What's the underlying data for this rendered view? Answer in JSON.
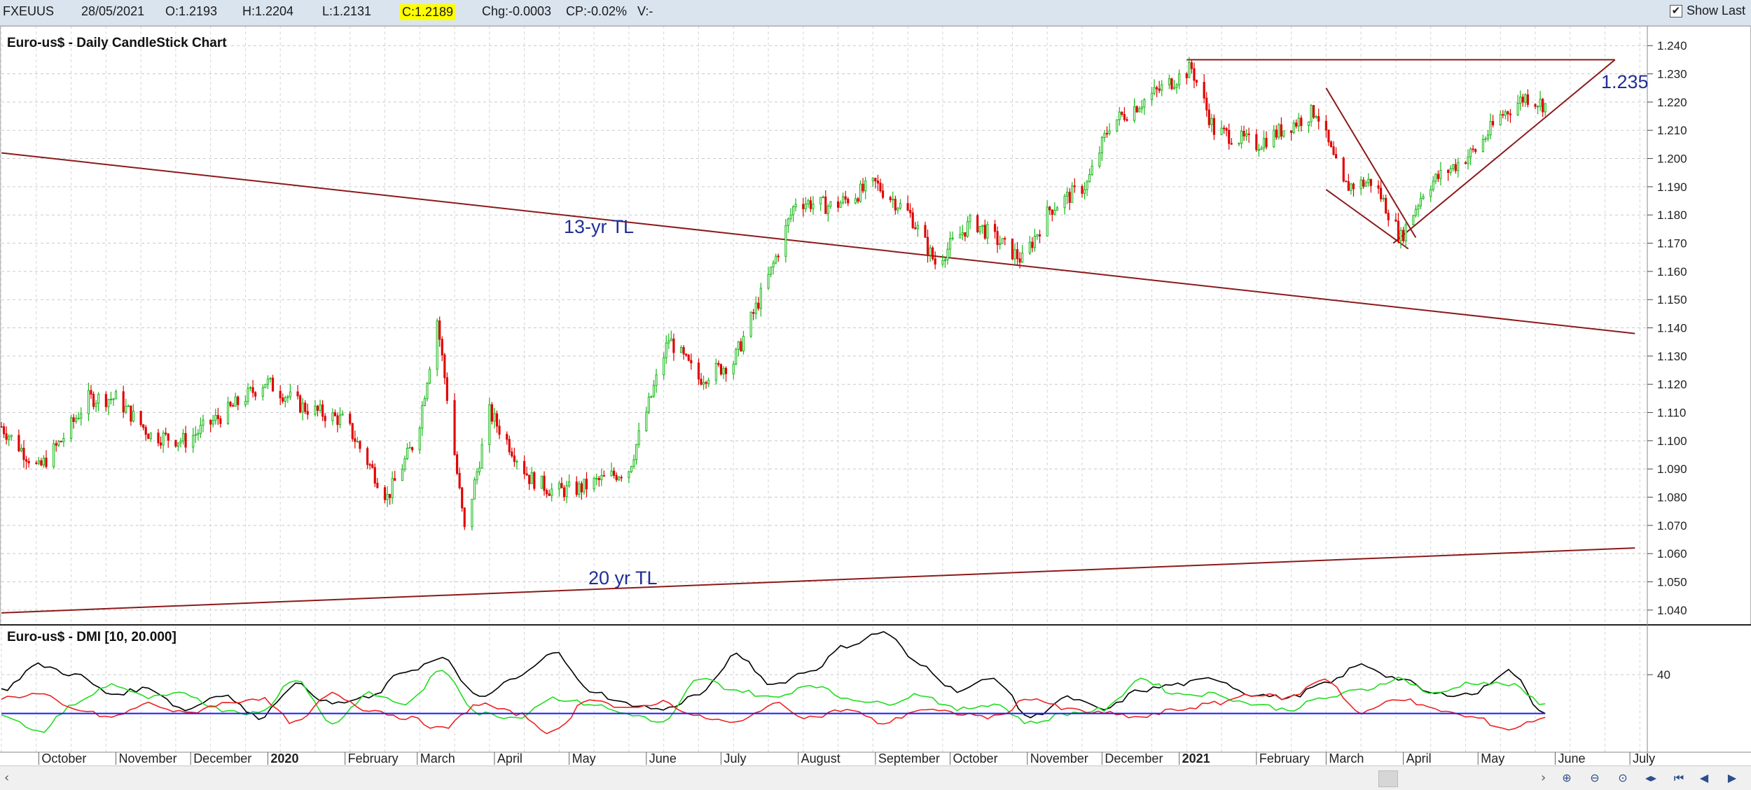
{
  "header": {
    "symbol": "FXEUUS",
    "date": "28/05/2021",
    "open": "O:1.2193",
    "high": "H:1.2204",
    "low": "L:1.2131",
    "close": "C:1.2189",
    "change": "Chg:-0.0003",
    "change_pct": "CP:-0.02%",
    "volume": "V:-",
    "show_last": "Show Last"
  },
  "colors": {
    "up": "#16b816",
    "down": "#e00000",
    "trendline": "#8b1a1a",
    "annotation": "#1f2f96",
    "dmi_adx": "#000000",
    "dmi_plus": "#22dd22",
    "dmi_minus": "#ee2222",
    "dmi_threshold": "#1a1aff"
  },
  "chart_data": [
    {
      "type": "candlestick",
      "title": "Euro-us$ - Daily CandleStick Chart",
      "y_ticks": [
        "1.240",
        "1.230",
        "1.220",
        "1.210",
        "1.200",
        "1.190",
        "1.180",
        "1.170",
        "1.160",
        "1.150",
        "1.140",
        "1.130",
        "1.120",
        "1.110",
        "1.100",
        "1.090",
        "1.080",
        "1.070",
        "1.060",
        "1.050",
        "1.040"
      ],
      "ylim": [
        1.035,
        1.247
      ],
      "x_ticks": [
        "October",
        "November",
        "December",
        "2020",
        "February",
        "March",
        "April",
        "May",
        "June",
        "July",
        "August",
        "September",
        "October",
        "November",
        "December",
        "2021",
        "February",
        "March",
        "April",
        "May",
        "June",
        "July"
      ],
      "x_range": [
        "2019-09-16",
        "2021-07-08"
      ],
      "x_tick_dates": [
        "2019-10-01",
        "2019-11-01",
        "2019-12-01",
        "2020-01-01",
        "2020-02-01",
        "2020-03-01",
        "2020-04-01",
        "2020-05-01",
        "2020-06-01",
        "2020-07-01",
        "2020-08-01",
        "2020-09-01",
        "2020-10-01",
        "2020-11-01",
        "2020-12-01",
        "2021-01-01",
        "2021-02-01",
        "2021-03-01",
        "2021-04-01",
        "2021-05-01",
        "2021-06-01",
        "2021-07-01"
      ],
      "close_path": [
        [
          "2019-09-16",
          1.105
        ],
        [
          "2019-09-24",
          1.097
        ],
        [
          "2019-10-01",
          1.09
        ],
        [
          "2019-10-10",
          1.1
        ],
        [
          "2019-10-21",
          1.115
        ],
        [
          "2019-11-01",
          1.115
        ],
        [
          "2019-11-15",
          1.102
        ],
        [
          "2019-11-29",
          1.1
        ],
        [
          "2019-12-15",
          1.11
        ],
        [
          "2019-12-31",
          1.121
        ],
        [
          "2020-01-15",
          1.112
        ],
        [
          "2020-02-01",
          1.107
        ],
        [
          "2020-02-18",
          1.08
        ],
        [
          "2020-03-01",
          1.102
        ],
        [
          "2020-03-09",
          1.143
        ],
        [
          "2020-03-20",
          1.068
        ],
        [
          "2020-03-30",
          1.11
        ],
        [
          "2020-04-15",
          1.087
        ],
        [
          "2020-04-25",
          1.082
        ],
        [
          "2020-05-05",
          1.083
        ],
        [
          "2020-05-25",
          1.09
        ],
        [
          "2020-06-10",
          1.136
        ],
        [
          "2020-06-22",
          1.122
        ],
        [
          "2020-07-06",
          1.128
        ],
        [
          "2020-07-21",
          1.16
        ],
        [
          "2020-07-31",
          1.185
        ],
        [
          "2020-08-15",
          1.183
        ],
        [
          "2020-09-01",
          1.191
        ],
        [
          "2020-09-15",
          1.18
        ],
        [
          "2020-09-25",
          1.163
        ],
        [
          "2020-10-10",
          1.178
        ],
        [
          "2020-10-30",
          1.164
        ],
        [
          "2020-11-10",
          1.182
        ],
        [
          "2020-11-25",
          1.191
        ],
        [
          "2020-12-04",
          1.212
        ],
        [
          "2020-12-20",
          1.222
        ],
        [
          "2021-01-06",
          1.232
        ],
        [
          "2021-01-15",
          1.21
        ],
        [
          "2021-02-01",
          1.205
        ],
        [
          "2021-02-15",
          1.212
        ],
        [
          "2021-02-25",
          1.217
        ],
        [
          "2021-03-08",
          1.19
        ],
        [
          "2021-03-20",
          1.192
        ],
        [
          "2021-03-31",
          1.172
        ],
        [
          "2021-04-10",
          1.19
        ],
        [
          "2021-04-30",
          1.203
        ],
        [
          "2021-05-10",
          1.215
        ],
        [
          "2021-05-20",
          1.222
        ],
        [
          "2021-05-28",
          1.219
        ]
      ],
      "annotations": [
        {
          "text": "13-yr TL",
          "at": [
            "2020-06-02",
            1.18
          ]
        },
        {
          "text": "20 yr TL",
          "at": [
            "2020-06-07",
            1.05
          ]
        },
        {
          "text": "1.235",
          "at": [
            "2021-07-03",
            1.237
          ]
        }
      ],
      "trendlines": [
        {
          "name": "13-yr TL",
          "from": [
            "2019-09-16",
            1.202
          ],
          "to": [
            "2021-07-03",
            1.138
          ]
        },
        {
          "name": "20 yr TL",
          "from": [
            "2019-09-16",
            1.039
          ],
          "to": [
            "2021-07-03",
            1.062
          ]
        },
        {
          "name": "1.235 resistance",
          "from": [
            "2021-01-04",
            1.235
          ],
          "to": [
            "2021-06-25",
            1.235
          ]
        },
        {
          "name": "falling wedge upper",
          "from": [
            "2021-03-01",
            1.225
          ],
          "to": [
            "2021-04-06",
            1.172
          ]
        },
        {
          "name": "falling wedge lower",
          "from": [
            "2021-03-01",
            1.189
          ],
          "to": [
            "2021-04-03",
            1.168
          ]
        },
        {
          "name": "rising support",
          "from": [
            "2021-03-28",
            1.17
          ],
          "to": [
            "2021-06-25",
            1.235
          ]
        }
      ],
      "grid": true
    },
    {
      "type": "line",
      "title": "Euro-us$ - DMI [10, 20.000]",
      "y_ticks": [
        "40"
      ],
      "ylim": [
        0,
        65
      ],
      "threshold": 20,
      "series": [
        {
          "values": [
            32,
            45,
            40,
            30,
            33,
            22,
            30,
            18,
            35,
            25,
            28,
            42,
            48,
            28,
            38,
            52,
            32,
            25,
            22,
            30,
            50,
            35,
            42,
            55,
            62,
            45,
            32,
            38,
            18,
            28,
            22,
            32,
            35,
            38,
            30,
            28,
            35,
            45,
            38,
            30,
            30,
            42,
            20
          ]
        },
        {
          "values": [
            20,
            10,
            25,
            35,
            28,
            30,
            22,
            20,
            38,
            15,
            30,
            25,
            42,
            20,
            18,
            28,
            25,
            20,
            15,
            38,
            32,
            28,
            35,
            28,
            25,
            30,
            22,
            25,
            15,
            20,
            22,
            38,
            30,
            30,
            25,
            22,
            28,
            32,
            38,
            30,
            36,
            35,
            25
          ]
        },
        {
          "values": [
            28,
            30,
            22,
            18,
            25,
            20,
            25,
            28,
            15,
            30,
            22,
            18,
            12,
            25,
            20,
            10,
            28,
            22,
            26,
            18,
            15,
            25,
            18,
            22,
            15,
            22,
            20,
            18,
            28,
            22,
            20,
            18,
            22,
            25,
            30,
            28,
            38,
            20,
            28,
            22,
            18,
            12,
            18
          ]
        }
      ],
      "grid": true
    }
  ]
}
